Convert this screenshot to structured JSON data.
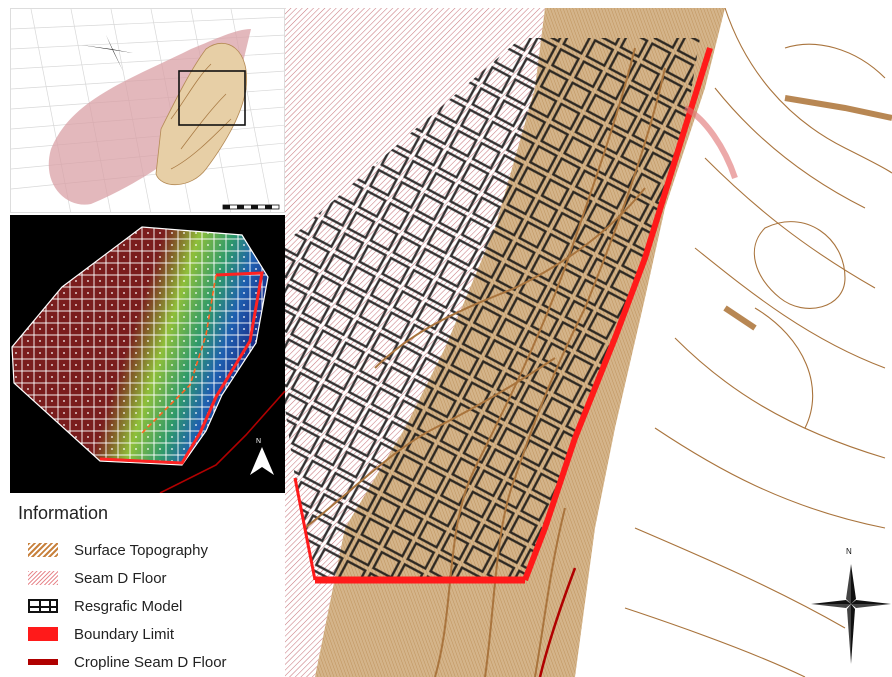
{
  "legend": {
    "title": "Information",
    "items": [
      {
        "label": "Surface Topography",
        "swatch": "hatched-brown",
        "color": "#c8823e"
      },
      {
        "label": "Seam D Floor",
        "swatch": "hatched-pink",
        "color": "#e88b90"
      },
      {
        "label": "Resgrafic Model",
        "swatch": "grid-black",
        "color": "#111111"
      },
      {
        "label": "Boundary Limit",
        "swatch": "solid-red",
        "color": "#ff1a1a"
      },
      {
        "label": "Cropline Seam D Floor",
        "swatch": "line-dark-red",
        "color": "#b00000"
      }
    ]
  },
  "inset_grid": {
    "north_label": "N",
    "icon": "north-arrow-icon"
  },
  "main_map": {
    "north_label": "N",
    "icon": "compass-star-icon"
  },
  "colors": {
    "topography": "#c8823e",
    "seam_floor": "#e88b90",
    "model_grid": "#111111",
    "boundary": "#ff1a1a",
    "cropline": "#b00000",
    "grid_background": "#000000"
  }
}
